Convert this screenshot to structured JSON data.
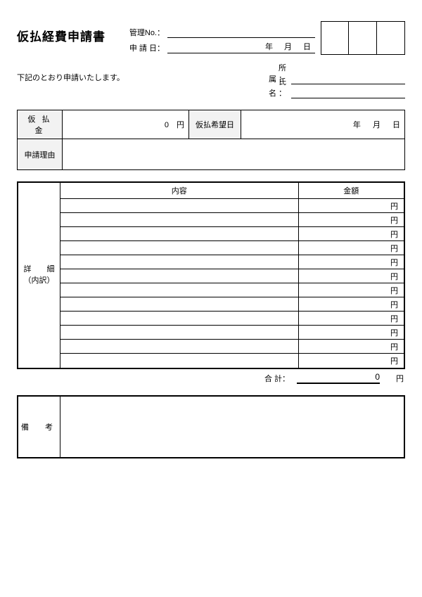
{
  "title": "仮払経費申請書",
  "header": {
    "mgmt_no_label": "管理No.：",
    "apply_date_label": "申 請 日：",
    "year_unit": "年",
    "month_unit": "月",
    "day_unit": "日"
  },
  "intro": "下記のとおり申請いたします。",
  "name_block": {
    "affiliation_label": "所 属：",
    "name_label": "氏 名："
  },
  "advance": {
    "amount_label": "仮 払 金",
    "amount_value": "0",
    "yen_unit": "円",
    "wish_date_label": "仮払希望日",
    "year_unit": "年",
    "month_unit": "月",
    "day_unit": "日",
    "reason_label": "申請理由"
  },
  "details": {
    "side_label_1": "詳　　細",
    "side_label_2": "（内訳）",
    "col_desc": "内容",
    "col_amount": "金額",
    "row_unit": "円",
    "row_count": 12,
    "total_label": "合 計：",
    "total_value": "0",
    "total_unit": "円"
  },
  "remarks": {
    "label": "備　考"
  },
  "style": {
    "header_bg": "#f2f2f2",
    "border_color": "#000000",
    "background": "#ffffff",
    "title_fontsize": 17,
    "body_fontsize": 11
  }
}
